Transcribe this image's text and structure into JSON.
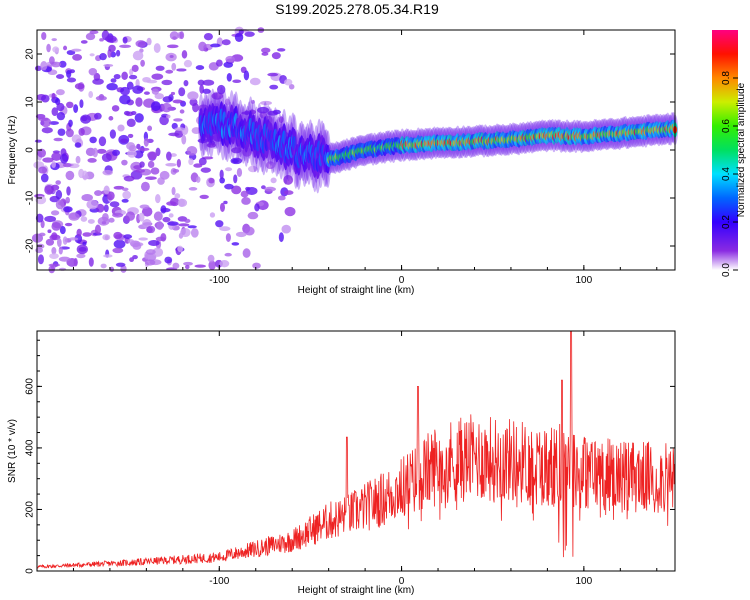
{
  "title": "S199.2025.278.05.34.R19",
  "chart_data": [
    {
      "type": "heatmap",
      "name": "spectrogram",
      "xlabel": "Height of straight line (km)",
      "ylabel": "Frequency (Hz)",
      "xlim": [
        -200,
        150
      ],
      "ylim": [
        -25,
        25
      ],
      "xticks": [
        -100,
        0,
        100
      ],
      "yticks": [
        -20,
        -10,
        0,
        10,
        20
      ],
      "ridge": [
        {
          "x": -100,
          "y": 6
        },
        {
          "x": -80,
          "y": 3
        },
        {
          "x": -60,
          "y": 0
        },
        {
          "x": -40,
          "y": -2
        },
        {
          "x": -20,
          "y": 0
        },
        {
          "x": 0,
          "y": 1
        },
        {
          "x": 20,
          "y": 1.5
        },
        {
          "x": 40,
          "y": 1.8
        },
        {
          "x": 60,
          "y": 2.2
        },
        {
          "x": 80,
          "y": 3
        },
        {
          "x": 100,
          "y": 2.8
        },
        {
          "x": 120,
          "y": 3.5
        },
        {
          "x": 150,
          "y": 4.5
        }
      ],
      "colorbar": {
        "label": "Normalized spectral amplitude",
        "ticks": [
          "0.0",
          "0.2",
          "0.4",
          "0.6",
          "0.8"
        ],
        "range": [
          0,
          1
        ]
      }
    },
    {
      "type": "line",
      "name": "snr",
      "xlabel": "Height of straight line (km)",
      "ylabel": "SNR (10 * v/v)",
      "xlim": [
        -200,
        150
      ],
      "ylim": [
        0,
        780
      ],
      "xticks": [
        -100,
        0,
        100
      ],
      "yticks": [
        0,
        200,
        400,
        600
      ],
      "color": "#ee2222",
      "envelope": [
        {
          "x": -200,
          "y": 15
        },
        {
          "x": -150,
          "y": 30
        },
        {
          "x": -100,
          "y": 50
        },
        {
          "x": -80,
          "y": 80
        },
        {
          "x": -60,
          "y": 110
        },
        {
          "x": -40,
          "y": 180
        },
        {
          "x": -30,
          "y": 200
        },
        {
          "x": -20,
          "y": 230
        },
        {
          "x": -10,
          "y": 260
        },
        {
          "x": 0,
          "y": 300
        },
        {
          "x": 10,
          "y": 340
        },
        {
          "x": 20,
          "y": 390
        },
        {
          "x": 40,
          "y": 410
        },
        {
          "x": 60,
          "y": 400
        },
        {
          "x": 80,
          "y": 380
        },
        {
          "x": 90,
          "y": 390
        },
        {
          "x": 100,
          "y": 360
        },
        {
          "x": 120,
          "y": 345
        },
        {
          "x": 150,
          "y": 330
        }
      ],
      "spikes": [
        {
          "x": -30,
          "y": 435
        },
        {
          "x": 9,
          "y": 600
        },
        {
          "x": 88,
          "y": 620
        },
        {
          "x": 93,
          "y": 780
        }
      ]
    }
  ]
}
